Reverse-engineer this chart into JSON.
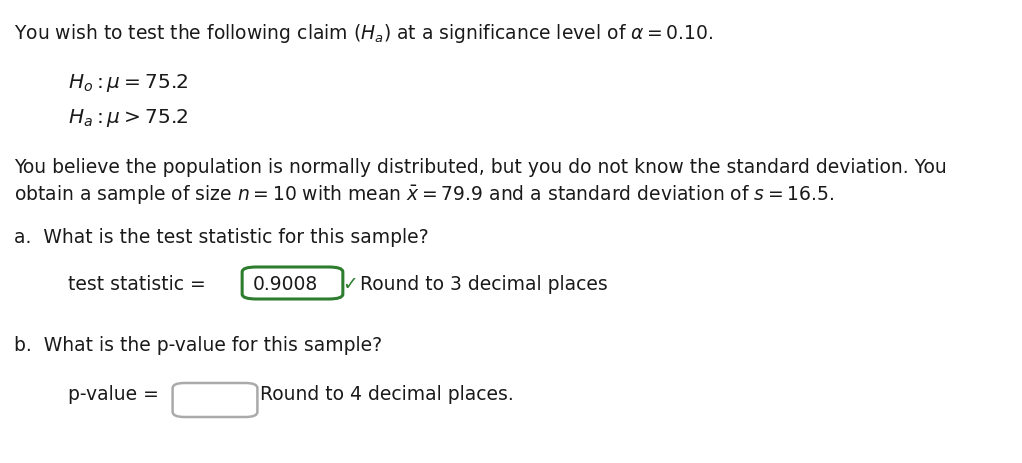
{
  "bg_color": "#ffffff",
  "text_color": "#1a1a1a",
  "green_color": "#2e7d2e",
  "gray_color": "#aaaaaa",
  "line1": "You wish to test the following claim $(H_a)$ at a significance level of $\\alpha = 0.10$.",
  "h0_line": "$H_o:\\mu = 75.2$",
  "ha_line": "$H_a:\\mu > 75.2$",
  "para1_line1": "You believe the population is normally distributed, but you do not know the standard deviation. You",
  "para1_line2": "obtain a sample of size $n = 10$ with mean $\\bar{x} = 79.9$ and a standard deviation of $s = 16.5$.",
  "q_a": "a.  What is the test statistic for this sample?",
  "label_a": "test statistic = ",
  "box_a_value": "0.9008",
  "check": "✓",
  "round_a": "Round to 3 decimal places",
  "q_b": "b.  What is the p-value for this sample?",
  "label_b": "p-value = ",
  "round_b": "Round to 4 decimal places.",
  "font_size_main": 13.5,
  "font_size_hyp": 14.5,
  "font_size_answer": 13.5
}
